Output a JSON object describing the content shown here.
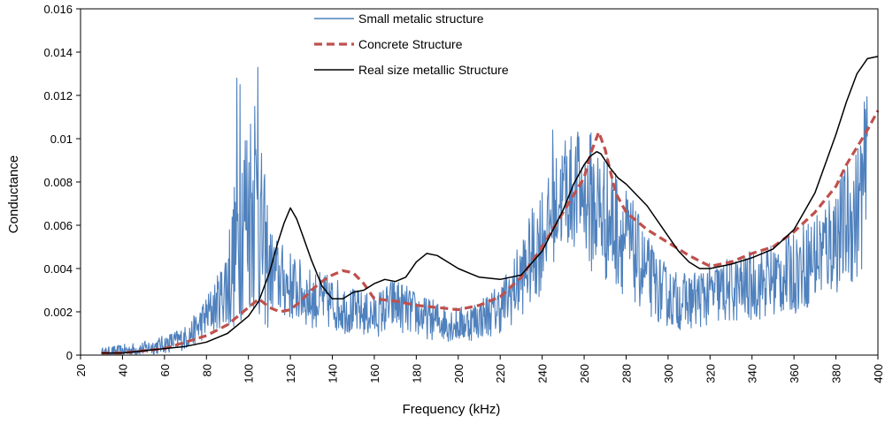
{
  "chart_data": {
    "type": "line",
    "title": "",
    "xlabel": "Frequency (kHz)",
    "ylabel": "Conductance",
    "xlim": [
      20,
      400
    ],
    "ylim": [
      0,
      0.016
    ],
    "x_ticks": [
      "20",
      "40",
      "60",
      "80",
      "100",
      "120",
      "140",
      "160",
      "180",
      "200",
      "220",
      "240",
      "260",
      "280",
      "300",
      "320",
      "340",
      "360",
      "380",
      "400"
    ],
    "y_ticks": [
      "0",
      "0.002",
      "0.004",
      "0.006",
      "0.008",
      "0.01",
      "0.012",
      "0.014",
      "0.016"
    ],
    "grid": false,
    "legend_position": "top-left",
    "series": [
      {
        "name": "Small metalic structure",
        "color": "#4f81bd",
        "style": "solid-noisy",
        "x": [
          30,
          40,
          50,
          60,
          70,
          75,
          80,
          85,
          90,
          93,
          95,
          97,
          100,
          102,
          104,
          106,
          108,
          110,
          115,
          120,
          125,
          130,
          135,
          140,
          145,
          150,
          155,
          160,
          165,
          170,
          175,
          180,
          185,
          190,
          195,
          200,
          205,
          210,
          215,
          220,
          225,
          230,
          235,
          240,
          245,
          248,
          252,
          256,
          260,
          264,
          268,
          272,
          276,
          280,
          285,
          290,
          295,
          300,
          305,
          310,
          320,
          330,
          340,
          350,
          360,
          370,
          380,
          385,
          390,
          395
        ],
        "y": [
          0.0001,
          0.0002,
          0.0003,
          0.0005,
          0.0008,
          0.0012,
          0.0018,
          0.0024,
          0.0033,
          0.0045,
          0.0055,
          0.0065,
          0.0068,
          0.0072,
          0.0065,
          0.0055,
          0.0047,
          0.004,
          0.0035,
          0.0032,
          0.0029,
          0.0026,
          0.0025,
          0.0024,
          0.0022,
          0.002,
          0.0019,
          0.0018,
          0.0021,
          0.0024,
          0.0021,
          0.0019,
          0.0017,
          0.0016,
          0.0015,
          0.0014,
          0.0015,
          0.0017,
          0.0019,
          0.0022,
          0.0028,
          0.0036,
          0.0045,
          0.0055,
          0.0065,
          0.0072,
          0.0075,
          0.0076,
          0.0074,
          0.007,
          0.0066,
          0.0062,
          0.0058,
          0.0053,
          0.0045,
          0.0037,
          0.0031,
          0.0027,
          0.0025,
          0.0025,
          0.0028,
          0.003,
          0.0032,
          0.0035,
          0.0038,
          0.0045,
          0.0055,
          0.006,
          0.0066,
          0.0085
        ]
      },
      {
        "name": "Concrete Structure",
        "color": "#c0504d",
        "style": "dashed",
        "x": [
          30,
          40,
          50,
          60,
          70,
          80,
          90,
          100,
          105,
          110,
          115,
          120,
          125,
          130,
          135,
          140,
          145,
          150,
          155,
          160,
          170,
          180,
          190,
          200,
          210,
          220,
          230,
          240,
          250,
          255,
          260,
          263,
          265,
          267,
          270,
          275,
          280,
          290,
          300,
          310,
          320,
          330,
          340,
          350,
          360,
          370,
          380,
          385,
          390,
          395,
          400
        ],
        "y": [
          0.0001,
          0.0001,
          0.0002,
          0.0003,
          0.0006,
          0.0009,
          0.0014,
          0.0022,
          0.0026,
          0.0022,
          0.002,
          0.0021,
          0.0025,
          0.003,
          0.0034,
          0.0037,
          0.0039,
          0.0038,
          0.0033,
          0.0026,
          0.0025,
          0.0023,
          0.0022,
          0.0021,
          0.0023,
          0.0027,
          0.0036,
          0.005,
          0.0066,
          0.0074,
          0.0082,
          0.0093,
          0.0098,
          0.0103,
          0.0095,
          0.0075,
          0.0066,
          0.0058,
          0.0052,
          0.0046,
          0.0041,
          0.0043,
          0.0047,
          0.005,
          0.0057,
          0.0066,
          0.0078,
          0.0088,
          0.0096,
          0.0104,
          0.0113
        ]
      },
      {
        "name": "Real size metallic Structure",
        "color": "#000000",
        "style": "solid",
        "x": [
          30,
          40,
          50,
          60,
          70,
          80,
          90,
          100,
          105,
          110,
          114,
          117,
          120,
          123,
          126,
          130,
          135,
          140,
          145,
          150,
          155,
          160,
          165,
          170,
          175,
          180,
          185,
          190,
          195,
          200,
          205,
          210,
          220,
          230,
          240,
          250,
          255,
          260,
          263,
          266,
          268,
          272,
          276,
          280,
          290,
          300,
          305,
          310,
          315,
          320,
          330,
          340,
          350,
          360,
          370,
          380,
          385,
          390,
          395,
          400
        ],
        "y": [
          0.0001,
          0.0001,
          0.0002,
          0.0003,
          0.0004,
          0.0006,
          0.001,
          0.0018,
          0.0025,
          0.0038,
          0.0052,
          0.0061,
          0.0068,
          0.0063,
          0.0055,
          0.0044,
          0.0032,
          0.0026,
          0.0026,
          0.0029,
          0.003,
          0.0033,
          0.0035,
          0.0034,
          0.0036,
          0.0043,
          0.0047,
          0.0046,
          0.0043,
          0.004,
          0.0038,
          0.0036,
          0.0035,
          0.0037,
          0.0048,
          0.0067,
          0.0079,
          0.0088,
          0.0092,
          0.0094,
          0.0093,
          0.0087,
          0.0082,
          0.0079,
          0.0069,
          0.0055,
          0.0048,
          0.0043,
          0.004,
          0.004,
          0.0042,
          0.0045,
          0.0049,
          0.0058,
          0.0075,
          0.0102,
          0.0117,
          0.013,
          0.0137,
          0.0138
        ]
      }
    ]
  }
}
